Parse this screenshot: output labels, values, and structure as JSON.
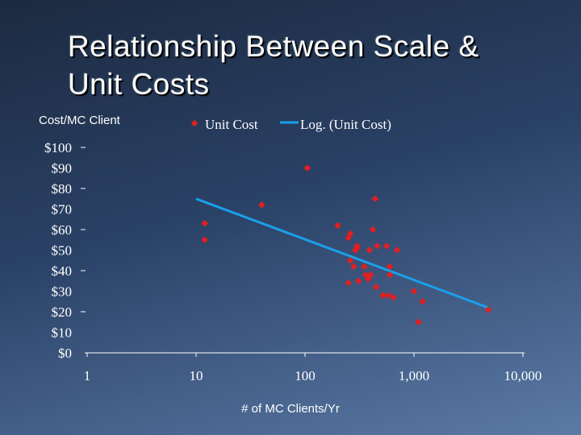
{
  "slide": {
    "title": "Relationship Between Scale &\nUnit Costs"
  },
  "colors": {
    "marker": "#e02020",
    "trendline": "#1aa0ea",
    "axis": "#ffffff"
  },
  "chart_data": {
    "type": "scatter",
    "title": "",
    "ylabel": "Cost/MC Client",
    "xlabel": "# of MC Clients/Yr",
    "x_scale": "log",
    "xlim": [
      1,
      10000
    ],
    "ylim": [
      0,
      100
    ],
    "x_ticks": [
      1,
      10,
      100,
      1000,
      10000
    ],
    "x_tick_labels": [
      "1",
      "10",
      "100",
      "1,000",
      "10,000"
    ],
    "y_ticks": [
      0,
      10,
      20,
      30,
      40,
      50,
      60,
      70,
      80,
      90,
      100
    ],
    "y_tick_labels": [
      "$0",
      "$10",
      "$20",
      "$30",
      "$40",
      "$50",
      "$60",
      "$70",
      "$80",
      "$90",
      "$100"
    ],
    "grid": false,
    "legend_position": "top",
    "series": [
      {
        "name": "Unit Cost",
        "marker": "diamond",
        "points": [
          [
            12,
            63
          ],
          [
            12,
            55
          ],
          [
            40,
            72
          ],
          [
            105,
            90
          ],
          [
            200,
            62
          ],
          [
            250,
            56
          ],
          [
            260,
            58
          ],
          [
            260,
            45
          ],
          [
            280,
            42
          ],
          [
            290,
            50
          ],
          [
            300,
            52
          ],
          [
            300,
            51
          ],
          [
            310,
            35
          ],
          [
            350,
            42
          ],
          [
            360,
            38
          ],
          [
            380,
            36
          ],
          [
            390,
            50
          ],
          [
            400,
            38
          ],
          [
            420,
            60
          ],
          [
            440,
            75
          ],
          [
            450,
            32
          ],
          [
            460,
            52
          ],
          [
            520,
            28
          ],
          [
            560,
            52
          ],
          [
            580,
            28
          ],
          [
            600,
            42
          ],
          [
            600,
            38
          ],
          [
            650,
            27
          ],
          [
            700,
            50
          ],
          [
            1000,
            30
          ],
          [
            1100,
            15
          ],
          [
            1200,
            25
          ],
          [
            4800,
            21
          ],
          [
            250,
            34
          ]
        ]
      },
      {
        "name": "Log. (Unit Cost)",
        "type": "line",
        "trend": "logarithmic",
        "points": [
          [
            10,
            75
          ],
          [
            4800,
            22
          ]
        ]
      }
    ]
  }
}
